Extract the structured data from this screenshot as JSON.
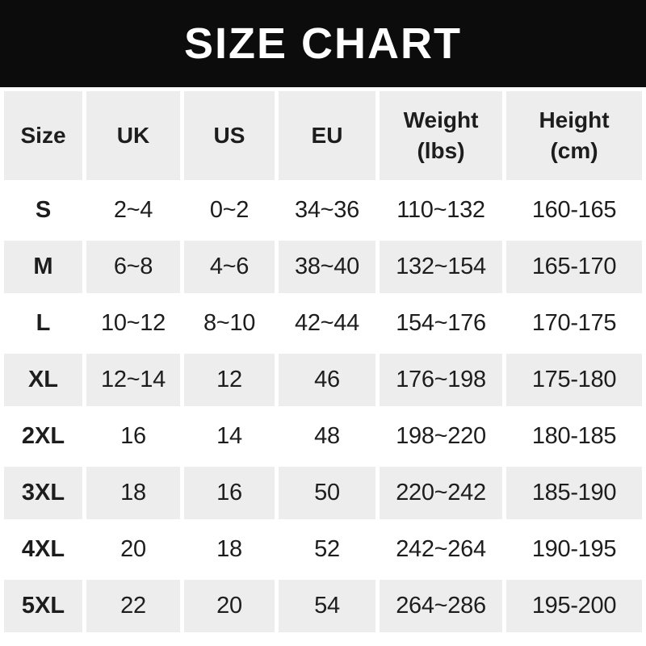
{
  "banner": {
    "title": "SIZE CHART"
  },
  "colors": {
    "banner_bg": "#0c0c0c",
    "banner_text": "#ffffff",
    "row_alt_bg": "#ededed",
    "row_bg": "#ffffff",
    "text": "#1d1d1d"
  },
  "table": {
    "headers": [
      {
        "label": "Size",
        "sub": ""
      },
      {
        "label": "UK",
        "sub": ""
      },
      {
        "label": "US",
        "sub": ""
      },
      {
        "label": "EU",
        "sub": ""
      },
      {
        "label": "Weight",
        "sub": "(lbs)"
      },
      {
        "label": "Height",
        "sub": "(cm)"
      }
    ]
  },
  "chart_data": {
    "type": "table",
    "title": "SIZE CHART",
    "columns": [
      "Size",
      "UK",
      "US",
      "EU",
      "Weight (lbs)",
      "Height (cm)"
    ],
    "rows": [
      [
        "S",
        "2~4",
        "0~2",
        "34~36",
        "110~132",
        "160-165"
      ],
      [
        "M",
        "6~8",
        "4~6",
        "38~40",
        "132~154",
        "165-170"
      ],
      [
        "L",
        "10~12",
        "8~10",
        "42~44",
        "154~176",
        "170-175"
      ],
      [
        "XL",
        "12~14",
        "12",
        "46",
        "176~198",
        "175-180"
      ],
      [
        "2XL",
        "16",
        "14",
        "48",
        "198~220",
        "180-185"
      ],
      [
        "3XL",
        "18",
        "16",
        "50",
        "220~242",
        "185-190"
      ],
      [
        "4XL",
        "20",
        "18",
        "52",
        "242~264",
        "190-195"
      ],
      [
        "5XL",
        "22",
        "20",
        "54",
        "264~286",
        "195-200"
      ]
    ]
  }
}
